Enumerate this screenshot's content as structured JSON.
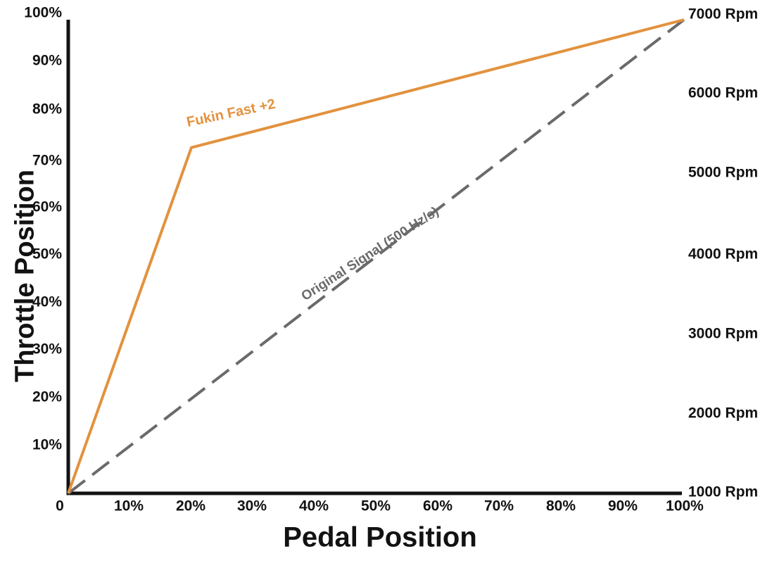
{
  "chart_data": {
    "type": "line",
    "title": "",
    "xlabel": "Pedal Position",
    "ylabel": "Throttle Position",
    "xlim": [
      0,
      100
    ],
    "ylim": [
      0,
      100
    ],
    "grid": false,
    "legend_position": "inline-labels-on-lines",
    "x_tick_labels": [
      "0",
      "10%",
      "20%",
      "30%",
      "40%",
      "50%",
      "60%",
      "70%",
      "80%",
      "90%",
      "100%"
    ],
    "x_tick_values": [
      0,
      10,
      20,
      30,
      40,
      50,
      60,
      70,
      80,
      90,
      100
    ],
    "y_left_tick_labels": [
      "100%",
      "90%",
      "80%",
      "70%",
      "60%",
      "50%",
      "40%",
      "30%",
      "20%",
      "10%"
    ],
    "y_left_tick_values": [
      100,
      90,
      80,
      70,
      60,
      50,
      40,
      30,
      20,
      10
    ],
    "y_right_tick_labels": [
      "7000 Rpm",
      "6000 Rpm",
      "5000 Rpm",
      "4000 Rpm",
      "3000 Rpm",
      "2000 Rpm",
      "1000 Rpm"
    ],
    "y_right_axis": {
      "unit": "Rpm",
      "min": 1000,
      "max": 7000,
      "step": 1000
    },
    "series": [
      {
        "name": "Fukin Fast +2",
        "color": "#E2923E",
        "line_style": "solid",
        "points": [
          [
            0,
            0
          ],
          [
            20,
            73
          ],
          [
            100,
            100
          ]
        ]
      },
      {
        "name": "Original Signal (500 Hz/s)",
        "color": "#6A6A6A",
        "line_style": "dashed",
        "points": [
          [
            0,
            0
          ],
          [
            100,
            100
          ]
        ]
      }
    ],
    "colors": {
      "axis": "#121212",
      "text": "#121212",
      "background": "#FFFFFF"
    }
  }
}
